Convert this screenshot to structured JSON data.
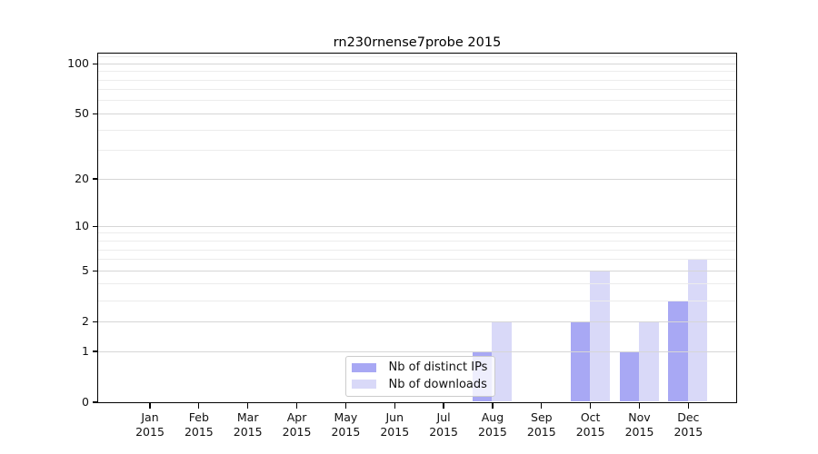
{
  "chart_data": {
    "type": "bar",
    "title": "rn230rnense7probe 2015",
    "categories": [
      "Jan",
      "Feb",
      "Mar",
      "Apr",
      "May",
      "Jun",
      "Jul",
      "Aug",
      "Sep",
      "Oct",
      "Nov",
      "Dec"
    ],
    "category_year": "2015",
    "series": [
      {
        "name": "Nb of distinct IPs",
        "color": "#a8a8f4",
        "values": [
          0,
          0,
          0,
          0,
          0,
          0,
          0,
          1,
          0,
          2,
          1,
          3
        ]
      },
      {
        "name": "Nb of downloads",
        "color": "#d9d9f8",
        "values": [
          0,
          0,
          0,
          0,
          0,
          0,
          0,
          2,
          0,
          5,
          2,
          6
        ]
      }
    ],
    "xlabel": "",
    "ylabel": "",
    "yscale": "log10(value+1)",
    "yticks": [
      0,
      1,
      2,
      5,
      10,
      20,
      50,
      100
    ],
    "yticks_minor": [
      3,
      4,
      6,
      7,
      8,
      9,
      30,
      40,
      60,
      70,
      80,
      90,
      110
    ],
    "ylim": [
      0,
      115
    ],
    "grid": "on",
    "legend_position": "lower center"
  },
  "colors": {
    "grid_major": "#d6d6d6",
    "grid_minor": "#ececec",
    "axis": "#000000",
    "background": "#ffffff"
  }
}
